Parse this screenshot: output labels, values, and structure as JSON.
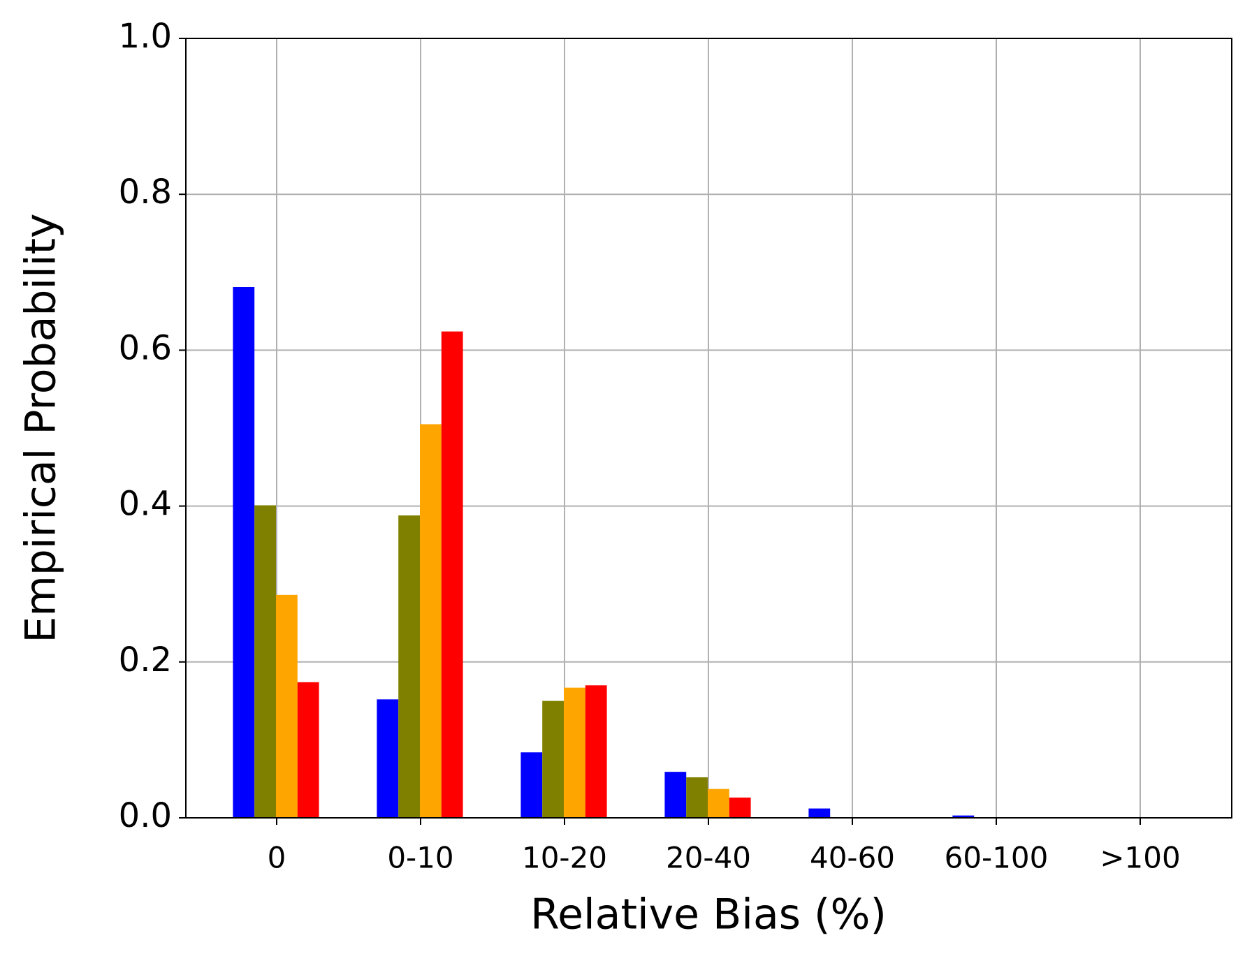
{
  "chart_data": {
    "type": "bar",
    "xlabel": "Relative Bias (%)",
    "ylabel": "Empirical Probability",
    "categories": [
      "0",
      "0-10",
      "10-20",
      "20-40",
      "40-60",
      "60-100",
      ">100"
    ],
    "series": [
      {
        "color": "#0000ff",
        "values": [
          0.681,
          0.152,
          0.084,
          0.059,
          0.012,
          0.003,
          0
        ]
      },
      {
        "color": "#808000",
        "values": [
          0.401,
          0.388,
          0.15,
          0.052,
          0,
          0,
          0
        ]
      },
      {
        "color": "#ffa500",
        "values": [
          0.286,
          0.505,
          0.167,
          0.037,
          0,
          0,
          0
        ]
      },
      {
        "color": "#ff0000",
        "values": [
          0.174,
          0.624,
          0.17,
          0.026,
          0,
          0,
          0
        ]
      }
    ],
    "ylim": [
      0,
      1
    ],
    "yticks": [
      {
        "value": 0,
        "label": "0.0"
      },
      {
        "value": 0.2,
        "label": "0.2"
      },
      {
        "value": 0.4,
        "label": "0.4"
      },
      {
        "value": 0.6,
        "label": "0.6"
      },
      {
        "value": 0.8,
        "label": "0.8"
      },
      {
        "value": 1,
        "label": "1.0"
      }
    ],
    "grid": true
  }
}
